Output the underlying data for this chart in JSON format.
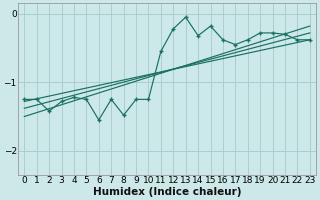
{
  "xlabel": "Humidex (Indice chaleur)",
  "bg_color": "#cce8e8",
  "line_color": "#1a7060",
  "grid_color": "#aacece",
  "xlim": [
    -0.5,
    23.5
  ],
  "ylim": [
    -2.35,
    0.15
  ],
  "yticks": [
    0,
    -1,
    -2
  ],
  "xticks": [
    0,
    1,
    2,
    3,
    4,
    5,
    6,
    7,
    8,
    9,
    10,
    11,
    12,
    13,
    14,
    15,
    16,
    17,
    18,
    19,
    20,
    21,
    22,
    23
  ],
  "main_x": [
    0,
    1,
    2,
    3,
    4,
    5,
    6,
    7,
    8,
    9,
    10,
    11,
    12,
    13,
    14,
    15,
    16,
    17,
    18,
    19,
    20,
    21,
    22,
    23
  ],
  "main_y": [
    -1.25,
    -1.25,
    -1.42,
    -1.28,
    -1.22,
    -1.25,
    -1.55,
    -1.25,
    -1.48,
    -1.25,
    -1.25,
    -0.55,
    -0.22,
    -0.05,
    -0.32,
    -0.18,
    -0.38,
    -0.45,
    -0.38,
    -0.28,
    -0.28,
    -0.3,
    -0.38,
    -0.38
  ],
  "line1_x": [
    0,
    23
  ],
  "line1_y": [
    -1.5,
    -0.18
  ],
  "line2_x": [
    0,
    23
  ],
  "line2_y": [
    -1.38,
    -0.28
  ],
  "line3_x": [
    0,
    23
  ],
  "line3_y": [
    -1.28,
    -0.38
  ],
  "tick_fontsize": 6.5,
  "label_fontsize": 7.5
}
